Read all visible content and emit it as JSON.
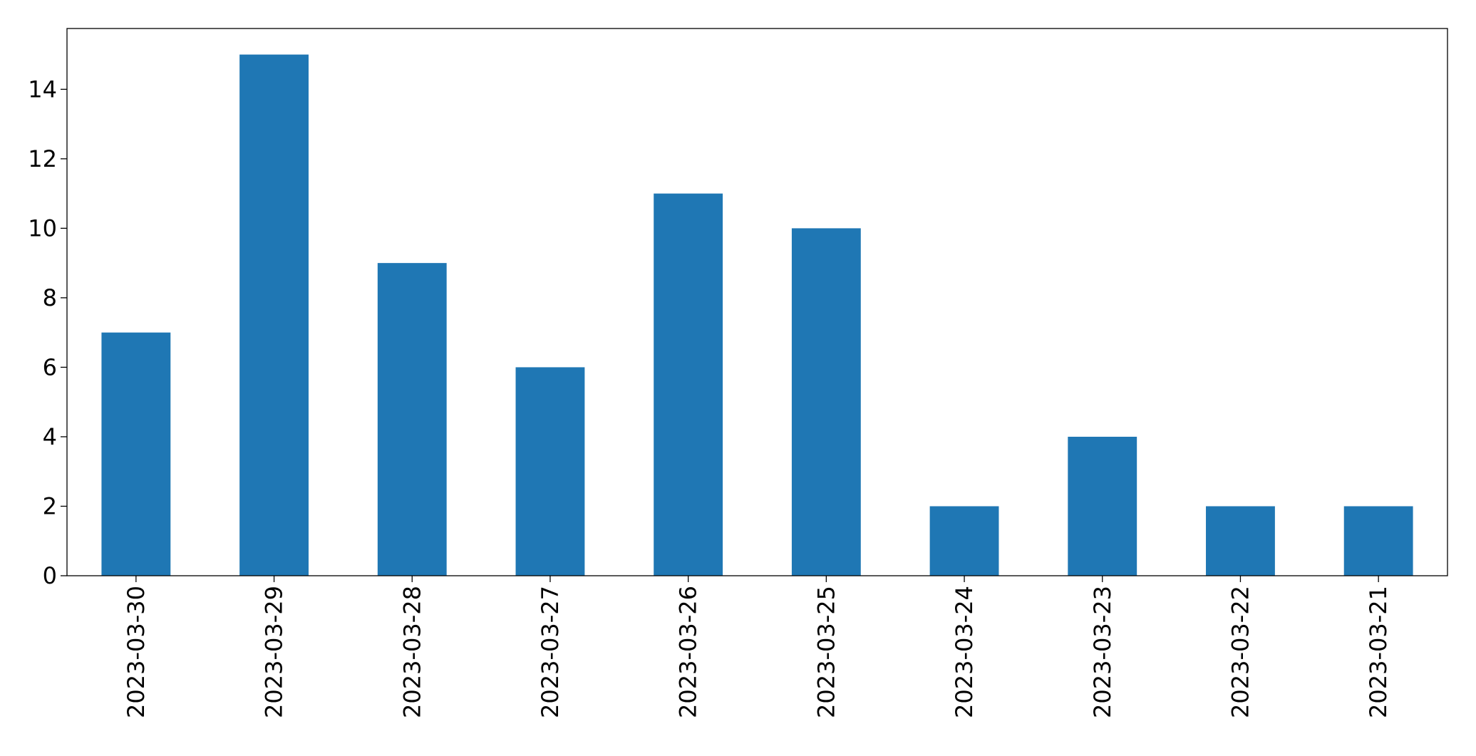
{
  "chart_data": {
    "type": "bar",
    "categories": [
      "2023-03-30",
      "2023-03-29",
      "2023-03-28",
      "2023-03-27",
      "2023-03-26",
      "2023-03-25",
      "2023-03-24",
      "2023-03-23",
      "2023-03-22",
      "2023-03-21"
    ],
    "values": [
      7,
      15,
      9,
      6,
      11,
      10,
      2,
      4,
      2,
      2
    ],
    "color": "#1f77b4",
    "ylim": [
      0,
      15.75
    ],
    "yticks": [
      0,
      2,
      4,
      6,
      8,
      10,
      12,
      14
    ],
    "grid": false
  }
}
